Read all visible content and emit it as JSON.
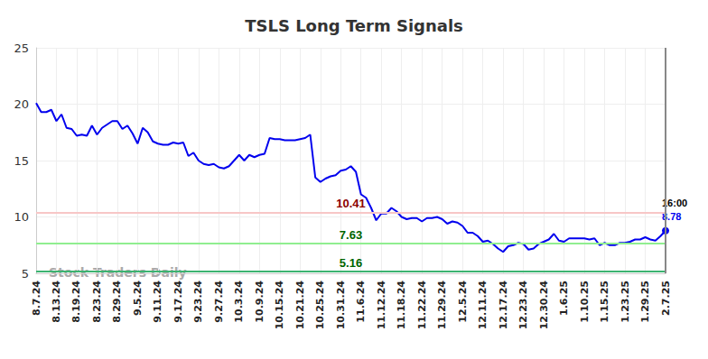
{
  "chart_data": {
    "type": "line",
    "title": "TSLS Long Term Signals",
    "watermark": "Stock Traders Daily",
    "last_label": "16:00",
    "color": "#0000ee",
    "grid": true,
    "ylim": [
      5,
      25
    ],
    "yticks": [
      5,
      10,
      15,
      20,
      25
    ],
    "levels": [
      {
        "value": 10.41,
        "color": "#8b0000"
      },
      {
        "value": 7.63,
        "color": "#006400"
      },
      {
        "value": 5.16,
        "color": "#006400"
      }
    ],
    "categories": [
      "8.7.24",
      null,
      null,
      null,
      "8.13.24",
      null,
      null,
      null,
      "8.19.24",
      null,
      null,
      null,
      "8.23.24",
      null,
      null,
      null,
      "8.29.24",
      null,
      null,
      null,
      "9.5.24",
      null,
      null,
      null,
      "9.11.24",
      null,
      null,
      null,
      "9.17.24",
      null,
      null,
      null,
      "9.23.24",
      null,
      null,
      null,
      "9.27.24",
      null,
      null,
      null,
      "10.3.24",
      null,
      null,
      null,
      "10.9.24",
      null,
      null,
      null,
      "10.15.24",
      null,
      null,
      null,
      "10.21.24",
      null,
      null,
      null,
      "10.25.24",
      null,
      null,
      null,
      "10.31.24",
      null,
      null,
      null,
      "11.6.24",
      null,
      null,
      null,
      "11.12.24",
      null,
      null,
      null,
      "11.18.24",
      null,
      null,
      null,
      "11.22.24",
      null,
      null,
      null,
      "11.29.24",
      null,
      null,
      null,
      "12.5.24",
      null,
      null,
      null,
      "12.11.24",
      null,
      null,
      null,
      "12.17.24",
      null,
      null,
      null,
      "12.23.24",
      null,
      null,
      null,
      "12.30.24",
      null,
      null,
      null,
      "1.6.25",
      null,
      null,
      null,
      "1.10.25",
      null,
      null,
      null,
      "1.15.25",
      null,
      null,
      null,
      "1.23.25",
      null,
      null,
      null,
      "1.29.25",
      null,
      null,
      null,
      "2.7.25"
    ],
    "values": [
      20.1,
      19.3,
      19.3,
      19.5,
      18.5,
      19.1,
      17.9,
      17.8,
      17.2,
      17.3,
      17.2,
      18.1,
      17.3,
      17.9,
      18.2,
      18.5,
      18.5,
      17.8,
      18.1,
      17.4,
      16.5,
      17.9,
      17.5,
      16.7,
      16.5,
      16.4,
      16.4,
      16.6,
      16.5,
      16.6,
      15.4,
      15.7,
      15.0,
      14.7,
      14.6,
      14.7,
      14.4,
      14.3,
      14.5,
      15.0,
      15.5,
      15.0,
      15.5,
      15.3,
      15.5,
      15.6,
      17.0,
      16.9,
      16.9,
      16.8,
      16.8,
      16.8,
      16.9,
      17.0,
      17.3,
      13.5,
      13.1,
      13.4,
      13.6,
      13.7,
      14.1,
      14.2,
      14.5,
      14.0,
      12.0,
      11.7,
      10.8,
      9.7,
      10.3,
      10.3,
      10.8,
      10.5,
      10.0,
      9.8,
      9.9,
      9.9,
      9.6,
      9.9,
      9.9,
      10.0,
      9.8,
      9.4,
      9.6,
      9.5,
      9.2,
      8.6,
      8.6,
      8.3,
      7.8,
      7.9,
      7.6,
      7.2,
      6.9,
      7.4,
      7.5,
      7.7,
      7.6,
      7.1,
      7.2,
      7.6,
      7.8,
      8.0,
      8.5,
      7.9,
      7.8,
      8.1,
      8.1,
      8.1,
      8.1,
      8.0,
      8.1,
      7.5,
      7.7,
      7.5,
      7.5,
      7.7,
      7.7,
      7.8,
      8.0,
      8.0,
      8.2,
      8.0,
      7.9,
      8.3,
      8.78
    ]
  }
}
